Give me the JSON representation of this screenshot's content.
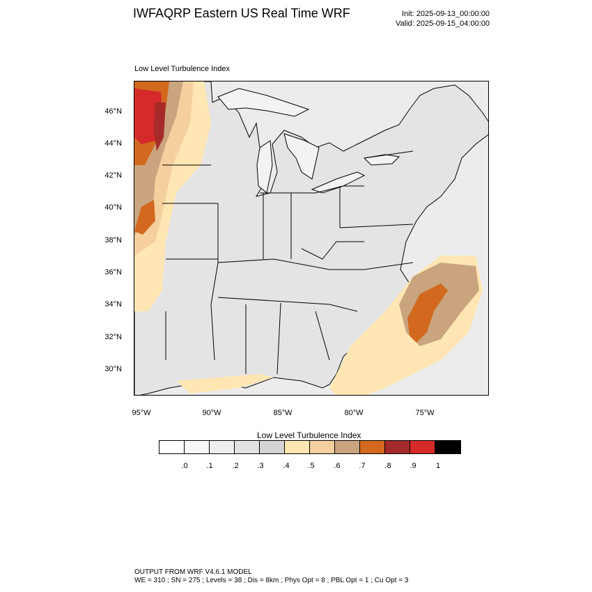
{
  "header": {
    "title": "IWFAQRP Eastern US Real Time WRF",
    "init": "Init: 2025-09-13_00:00:00",
    "valid": "Valid: 2025-09-15_04:00:00"
  },
  "map": {
    "subtitle": "Low Level Turbulence Index",
    "lat_labels": [
      "46°N",
      "44°N",
      "42°N",
      "40°N",
      "38°N",
      "36°N",
      "34°N",
      "32°N",
      "30°N"
    ],
    "lon_labels": [
      "95°W",
      "90°W",
      "85°W",
      "80°W",
      "75°W"
    ]
  },
  "colorbar": {
    "title": "Low Level Turbulence Index",
    "colors": [
      "#ffffff",
      "#f7f7f7",
      "#eeeeee",
      "#e2e2e2",
      "#d3d3d3",
      "#ffe6b3",
      "#f5d09e",
      "#c9a47f",
      "#d2691e",
      "#a52a2a",
      "#d42a2a",
      "#000000"
    ],
    "labels": [
      ".0",
      ".1",
      ".2",
      ".3",
      ".4",
      ".5",
      ".6",
      ".7",
      ".8",
      ".9",
      "1"
    ]
  },
  "footer": {
    "line1": "OUTPUT FROM WRF V4.6.1 MODEL",
    "line2": "WE = 310 ; SN = 275 ; Levels = 38 ; Dis = 8km ; Phys Opt = 8 ; PBL Opt = 1 ; Cu Opt = 3"
  }
}
